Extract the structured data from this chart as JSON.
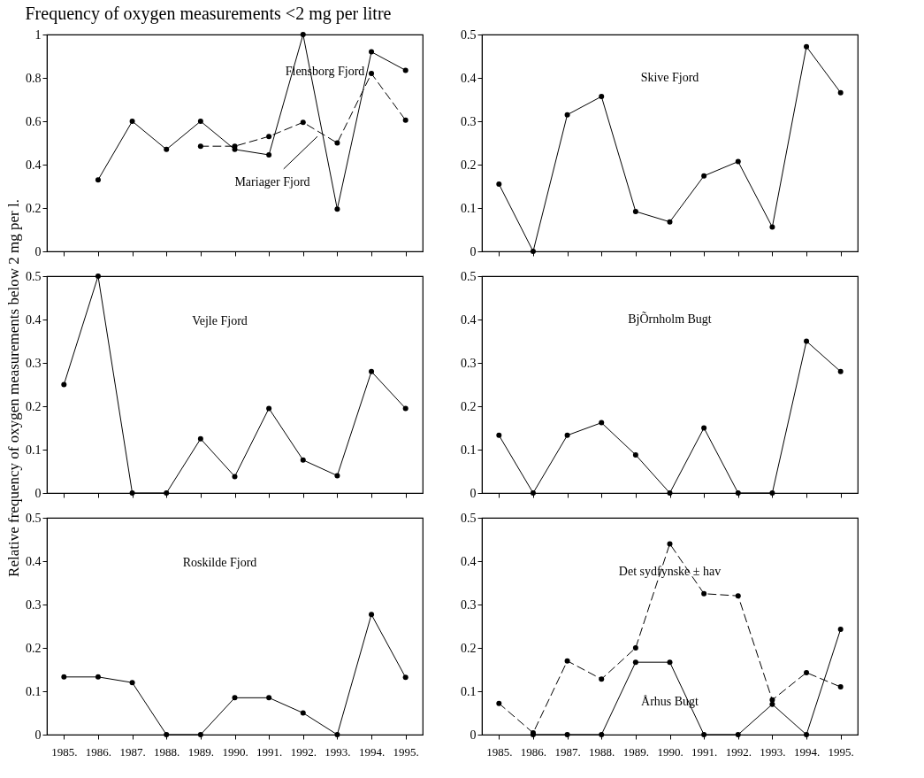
{
  "chart_data": [
    {
      "type": "line",
      "title": "Frequency of oxygen measurements <2 mg per litre",
      "categories": [
        "1985.",
        "1986.",
        "1987.",
        "1988.",
        "1989.",
        "1990.",
        "1991.",
        "1992.",
        "1993.",
        "1994.",
        "1995."
      ],
      "ylim": [
        0,
        1
      ],
      "yticks": [
        0,
        0.2,
        0.4,
        0.6,
        0.8,
        1
      ],
      "grid": false,
      "legend": false,
      "marker": "circle",
      "tick_labels": "y",
      "series": [
        {
          "name": "Flensborg Fjord",
          "color": "#000000",
          "line_style": "solid",
          "values": [
            null,
            0.33,
            0.6,
            0.47,
            0.6,
            0.47,
            0.445,
            1.0,
            0.195,
            0.92,
            0.835
          ]
        },
        {
          "name": "Mariager Fjord",
          "color": "#000000",
          "line_style": "dashed",
          "values": [
            null,
            null,
            null,
            null,
            0.485,
            0.485,
            0.53,
            0.595,
            0.5,
            0.82,
            0.605
          ]
        }
      ]
    },
    {
      "type": "line",
      "categories": [
        "1985.",
        "1986.",
        "1987.",
        "1988.",
        "1989.",
        "1990.",
        "1991.",
        "1992.",
        "1993.",
        "1994.",
        "1995."
      ],
      "ylim": [
        0,
        0.5
      ],
      "yticks": [
        0,
        0.1,
        0.2,
        0.3,
        0.4,
        0.5
      ],
      "grid": false,
      "legend": false,
      "marker": "circle",
      "tick_labels": "y",
      "series": [
        {
          "name": "Skive Fjord",
          "color": "#000000",
          "line_style": "solid",
          "values": [
            0.155,
            0,
            0.315,
            0.357,
            0.092,
            0.068,
            0.174,
            0.207,
            0.056,
            0.472,
            0.366
          ]
        }
      ]
    },
    {
      "type": "line",
      "ylabel": "Relative frequency of oxygen measurements below 2 mg per l.",
      "categories": [
        "1985.",
        "1986.",
        "1987.",
        "1988.",
        "1989.",
        "1990.",
        "1991.",
        "1992.",
        "1993.",
        "1994.",
        "1995."
      ],
      "ylim": [
        0,
        0.5
      ],
      "yticks": [
        0,
        0.1,
        0.2,
        0.3,
        0.4,
        0.5
      ],
      "grid": false,
      "legend": false,
      "marker": "circle",
      "tick_labels": "y",
      "series": [
        {
          "name": "Vejle Fjord",
          "color": "#000000",
          "line_style": "solid",
          "values": [
            0.25,
            0.5,
            0,
            0,
            0.125,
            0.038,
            0.195,
            0.076,
            0.04,
            0.28,
            0.195
          ]
        }
      ]
    },
    {
      "type": "line",
      "categories": [
        "1985.",
        "1986.",
        "1987.",
        "1988.",
        "1989.",
        "1990.",
        "1991.",
        "1992.",
        "1993.",
        "1994.",
        "1995."
      ],
      "ylim": [
        0,
        0.5
      ],
      "yticks": [
        0,
        0.1,
        0.2,
        0.3,
        0.4,
        0.5
      ],
      "grid": false,
      "legend": false,
      "marker": "circle",
      "tick_labels": "y",
      "series": [
        {
          "name": "BjÕrnholm Bugt",
          "color": "#000000",
          "line_style": "solid",
          "values": [
            0.133,
            0,
            0.133,
            0.162,
            0.088,
            0,
            0.15,
            0,
            0,
            0.35,
            0.28
          ]
        }
      ]
    },
    {
      "type": "line",
      "categories": [
        "1985.",
        "1986.",
        "1987.",
        "1988.",
        "1989.",
        "1990.",
        "1991.",
        "1992.",
        "1993.",
        "1994.",
        "1995."
      ],
      "ylim": [
        0,
        0.5
      ],
      "yticks": [
        0,
        0.1,
        0.2,
        0.3,
        0.4,
        0.5
      ],
      "grid": false,
      "legend": false,
      "marker": "circle",
      "series": [
        {
          "name": "Roskilde Fjord",
          "color": "#000000",
          "line_style": "solid",
          "values": [
            0.133,
            0.133,
            0.12,
            0,
            0,
            0.085,
            0.085,
            0.05,
            0,
            0.277,
            0.132
          ]
        }
      ]
    },
    {
      "type": "line",
      "categories": [
        "1985.",
        "1986.",
        "1987.",
        "1988.",
        "1989.",
        "1990.",
        "1991.",
        "1992.",
        "1993.",
        "1994.",
        "1995."
      ],
      "ylim": [
        0,
        0.5
      ],
      "yticks": [
        0,
        0.1,
        0.2,
        0.3,
        0.4,
        0.5
      ],
      "grid": false,
      "legend": false,
      "marker": "circle",
      "series": [
        {
          "name": "Det sydfynske ± hav",
          "color": "#000000",
          "line_style": "dashed",
          "values": [
            0.072,
            0.004,
            0.17,
            0.128,
            0.2,
            0.44,
            0.325,
            0.32,
            0.08,
            0.143,
            0.11
          ]
        },
        {
          "name": "Århus Bugt",
          "color": "#000000",
          "line_style": "solid",
          "values": [
            null,
            0,
            0,
            0,
            0.167,
            0.167,
            0,
            0,
            0.07,
            0,
            0.243
          ]
        }
      ]
    }
  ]
}
